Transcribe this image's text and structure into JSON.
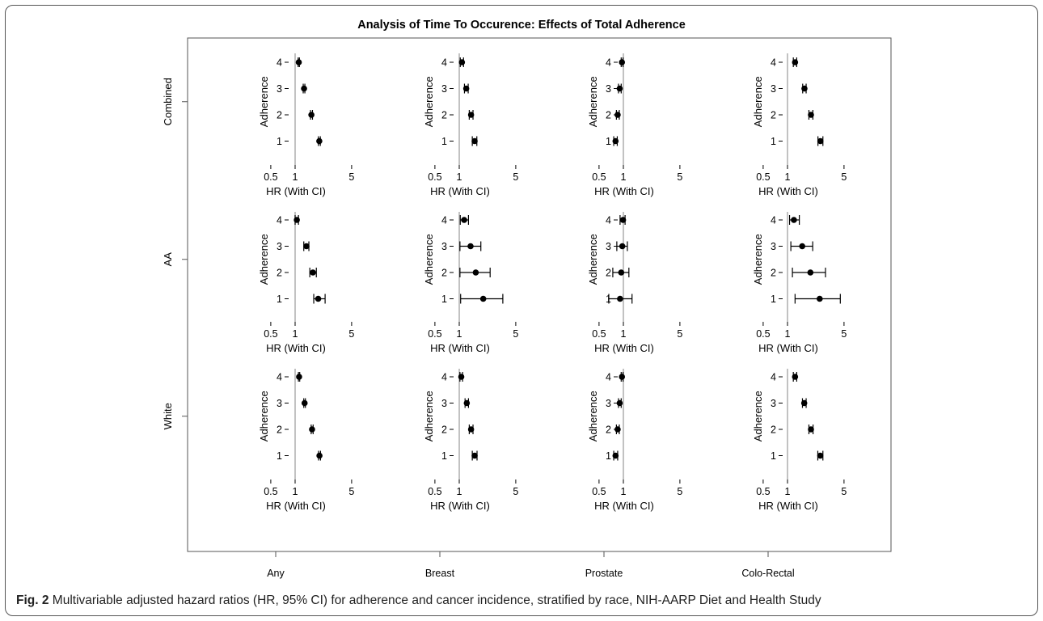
{
  "figure": {
    "title": "Analysis of Time To Occurence: Effects of Total Adherence",
    "caption_label": "Fig. 2",
    "caption_text": "Multivariable adjusted hazard ratios (HR, 95% CI) for adherence and cancer incidence, stratified by race, NIH-AARP Diet and Health Study"
  },
  "chart_data": {
    "type": "scatter",
    "subtype": "forest-plot-grid",
    "title": "Analysis of Time To Occurence: Effects of Total Adherence",
    "row_labels": [
      "Combined",
      "AA",
      "White"
    ],
    "column_labels": [
      "Any",
      "Breast",
      "Prostate",
      "Colo-Rectal"
    ],
    "xlabel": "HR (With CI)",
    "ylabel": "Adherence",
    "x_scale": "log",
    "x_ticks": [
      0.5,
      1,
      5
    ],
    "xlim": [
      0.5,
      5
    ],
    "y_ticks": [
      1,
      2,
      3,
      4
    ],
    "reference_line": 1,
    "panels": [
      {
        "row": "Combined",
        "column": "Any",
        "points": [
          {
            "adherence": 4,
            "hr": 1.11,
            "lo": 1.09,
            "hi": 1.13
          },
          {
            "adherence": 3,
            "hr": 1.29,
            "lo": 1.26,
            "hi": 1.32
          },
          {
            "adherence": 2,
            "hr": 1.59,
            "lo": 1.55,
            "hi": 1.64
          },
          {
            "adherence": 1,
            "hr": 1.99,
            "lo": 1.94,
            "hi": 2.05
          }
        ]
      },
      {
        "row": "Combined",
        "column": "Breast",
        "points": [
          {
            "adherence": 4,
            "hr": 1.08,
            "lo": 1.03,
            "hi": 1.13
          },
          {
            "adherence": 3,
            "hr": 1.22,
            "lo": 1.16,
            "hi": 1.29
          },
          {
            "adherence": 2,
            "hr": 1.4,
            "lo": 1.33,
            "hi": 1.48
          },
          {
            "adherence": 1,
            "hr": 1.55,
            "lo": 1.45,
            "hi": 1.65
          }
        ]
      },
      {
        "row": "Combined",
        "column": "Prostate",
        "points": [
          {
            "adherence": 4,
            "hr": 0.96,
            "lo": 0.94,
            "hi": 0.99
          },
          {
            "adherence": 3,
            "hr": 0.9,
            "lo": 0.87,
            "hi": 0.94
          },
          {
            "adherence": 2,
            "hr": 0.85,
            "lo": 0.82,
            "hi": 0.89
          },
          {
            "adherence": 1,
            "hr": 0.8,
            "lo": 0.76,
            "hi": 0.84
          }
        ]
      },
      {
        "row": "Combined",
        "column": "Colo-Rectal",
        "points": [
          {
            "adherence": 4,
            "hr": 1.24,
            "lo": 1.18,
            "hi": 1.3
          },
          {
            "adherence": 3,
            "hr": 1.62,
            "lo": 1.54,
            "hi": 1.7
          },
          {
            "adherence": 2,
            "hr": 1.95,
            "lo": 1.84,
            "hi": 2.06
          },
          {
            "adherence": 1,
            "hr": 2.55,
            "lo": 2.38,
            "hi": 2.74
          }
        ]
      },
      {
        "row": "AA",
        "column": "Any",
        "points": [
          {
            "adherence": 4,
            "hr": 1.05,
            "lo": 1.0,
            "hi": 1.1
          },
          {
            "adherence": 3,
            "hr": 1.38,
            "lo": 1.28,
            "hi": 1.48
          },
          {
            "adherence": 2,
            "hr": 1.66,
            "lo": 1.52,
            "hi": 1.83
          },
          {
            "adherence": 1,
            "hr": 1.93,
            "lo": 1.7,
            "hi": 2.35
          }
        ]
      },
      {
        "row": "AA",
        "column": "Breast",
        "points": [
          {
            "adherence": 4,
            "hr": 1.15,
            "lo": 1.03,
            "hi": 1.3
          },
          {
            "adherence": 3,
            "hr": 1.38,
            "lo": 1.02,
            "hi": 1.85
          },
          {
            "adherence": 2,
            "hr": 1.6,
            "lo": 1.02,
            "hi": 2.41
          },
          {
            "adherence": 1,
            "hr": 1.98,
            "lo": 1.04,
            "hi": 3.46
          }
        ]
      },
      {
        "row": "AA",
        "column": "Prostate",
        "points": [
          {
            "adherence": 4,
            "hr": 0.99,
            "lo": 0.91,
            "hi": 1.05
          },
          {
            "adherence": 3,
            "hr": 0.97,
            "lo": 0.83,
            "hi": 1.12
          },
          {
            "adherence": 2,
            "hr": 0.94,
            "lo": 0.74,
            "hi": 1.17
          },
          {
            "adherence": 1,
            "hr": 0.91,
            "lo": 0.66,
            "hi": 1.28
          }
        ]
      },
      {
        "row": "AA",
        "column": "Colo-Rectal",
        "points": [
          {
            "adherence": 4,
            "hr": 1.2,
            "lo": 1.06,
            "hi": 1.4
          },
          {
            "adherence": 3,
            "hr": 1.52,
            "lo": 1.1,
            "hi": 2.05
          },
          {
            "adherence": 2,
            "hr": 1.92,
            "lo": 1.15,
            "hi": 2.95
          },
          {
            "adherence": 1,
            "hr": 2.5,
            "lo": 1.24,
            "hi": 4.5
          }
        ]
      },
      {
        "row": "White",
        "column": "Any",
        "points": [
          {
            "adherence": 4,
            "hr": 1.12,
            "lo": 1.1,
            "hi": 1.14
          },
          {
            "adherence": 3,
            "hr": 1.31,
            "lo": 1.28,
            "hi": 1.34
          },
          {
            "adherence": 2,
            "hr": 1.62,
            "lo": 1.58,
            "hi": 1.67
          },
          {
            "adherence": 1,
            "hr": 2.0,
            "lo": 1.95,
            "hi": 2.06
          }
        ]
      },
      {
        "row": "White",
        "column": "Breast",
        "points": [
          {
            "adherence": 4,
            "hr": 1.06,
            "lo": 1.02,
            "hi": 1.1
          },
          {
            "adherence": 3,
            "hr": 1.24,
            "lo": 1.18,
            "hi": 1.3
          },
          {
            "adherence": 2,
            "hr": 1.4,
            "lo": 1.33,
            "hi": 1.48
          },
          {
            "adherence": 1,
            "hr": 1.55,
            "lo": 1.45,
            "hi": 1.66
          }
        ]
      },
      {
        "row": "White",
        "column": "Prostate",
        "points": [
          {
            "adherence": 4,
            "hr": 0.96,
            "lo": 0.94,
            "hi": 0.99
          },
          {
            "adherence": 3,
            "hr": 0.9,
            "lo": 0.87,
            "hi": 0.94
          },
          {
            "adherence": 2,
            "hr": 0.85,
            "lo": 0.82,
            "hi": 0.89
          },
          {
            "adherence": 1,
            "hr": 0.8,
            "lo": 0.76,
            "hi": 0.85
          }
        ]
      },
      {
        "row": "White",
        "column": "Colo-Rectal",
        "points": [
          {
            "adherence": 4,
            "hr": 1.24,
            "lo": 1.18,
            "hi": 1.3
          },
          {
            "adherence": 3,
            "hr": 1.61,
            "lo": 1.53,
            "hi": 1.7
          },
          {
            "adherence": 2,
            "hr": 1.95,
            "lo": 1.84,
            "hi": 2.07
          },
          {
            "adherence": 1,
            "hr": 2.54,
            "lo": 2.37,
            "hi": 2.74
          }
        ]
      }
    ],
    "grid": false,
    "legend": "none"
  }
}
